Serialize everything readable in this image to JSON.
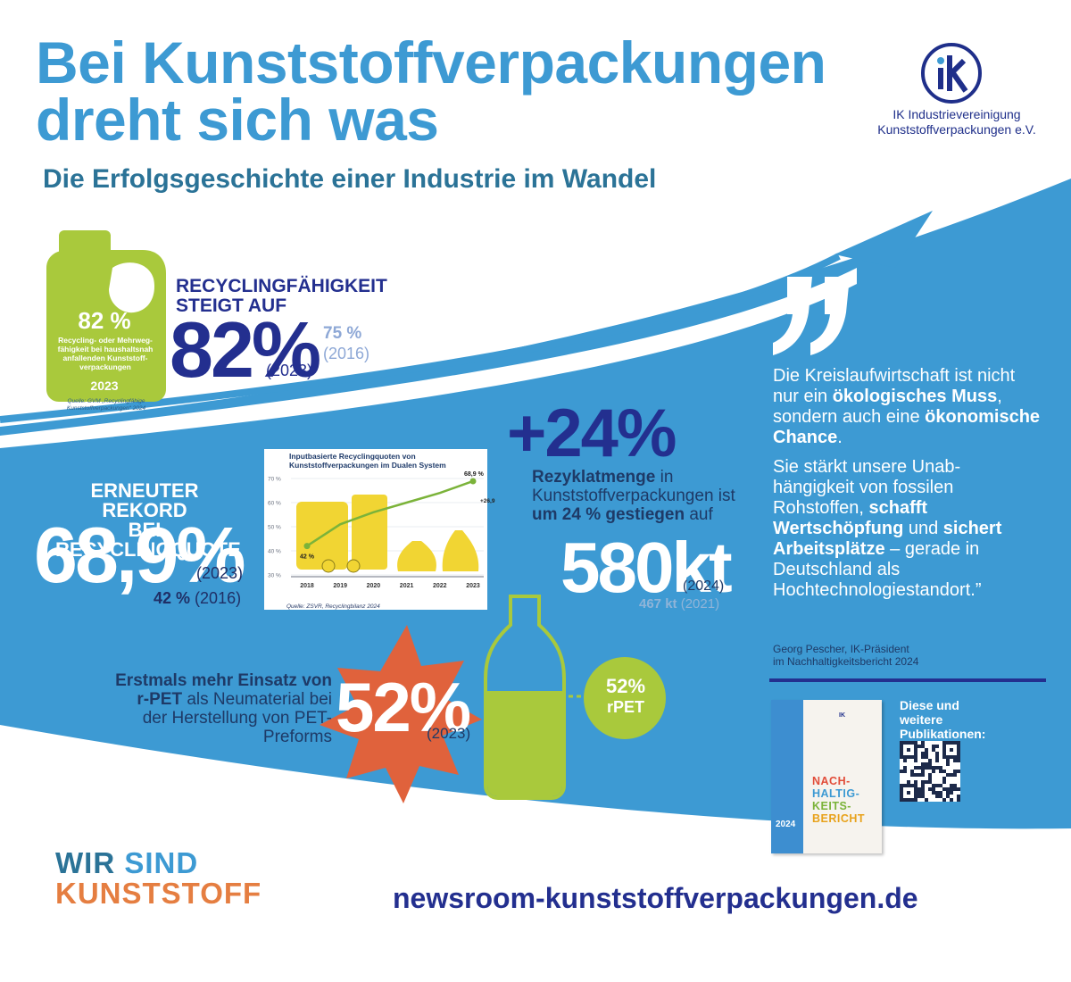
{
  "header": {
    "title_line1": "Bei Kunststoffverpackungen",
    "title_line2": "dreht sich was",
    "subtitle": "Die Erfolgsgeschichte einer Industrie im Wandel"
  },
  "logo": {
    "mark": "IK",
    "line1": "IK Industrievereinigung",
    "line2": "Kunststoffverpackungen e.V."
  },
  "recyclability": {
    "heading_line1": "RECYCLINGFÄHIGKEIT",
    "heading_line2": "STEIGT AUF",
    "value": "82%",
    "year": "(2023)",
    "previous_value": "75 %",
    "previous_year": "(2016)",
    "canister": {
      "value": "82 %",
      "description": "Recycling- oder Mehrweg-fähigkeit bei haushaltsnah anfallenden Kunststoff-verpackungen",
      "year": "2023",
      "source": "Quelle: GVM „Recyclingfähige Kunststoffverpackungen“ 2024"
    }
  },
  "recycling_rate": {
    "heading_line1": "ERNEUTER REKORD",
    "heading_line2": "BEI RECYCLINGQUOTE",
    "value": "68,9%",
    "year": "(2023)",
    "previous_value": "42 %",
    "previous_year": "(2016)"
  },
  "chart_data": {
    "type": "line",
    "title": "Inputbasierte Recyclingquoten von Kunststoffverpackungen im Dualen System",
    "categories": [
      "2018",
      "2019",
      "2020",
      "2021",
      "2022",
      "2023"
    ],
    "y_tick_labels": [
      "30 %",
      "40 %",
      "50 %",
      "60 %",
      "70 %"
    ],
    "ylim": [
      30,
      70
    ],
    "series": [
      {
        "values": [
          42,
          51,
          56,
          60,
          64,
          68.9
        ]
      }
    ],
    "annotations": {
      "start": "42 %",
      "end": "68,9 %",
      "delta": "+26,9 % P"
    },
    "source": "Quelle: ZSVR, Recyclingbilanz 2024",
    "colors": {
      "line": "#7bb33a",
      "containers": "#f1d533",
      "axis": "#6b7280"
    }
  },
  "recyclate": {
    "change": "+24%",
    "text_bold1": "Rezyklatmenge",
    "text1": " in Kunststoffverpackungen ist ",
    "text_bold2": "um 24 % gestiegen",
    "text2": " auf",
    "value": "580kt",
    "year": "(2024)",
    "previous_value": "467 kt",
    "previous_year": " (2021)"
  },
  "quote": {
    "p1_a": "Die Kreislaufwirtschaft ist nicht nur ein ",
    "p1_b": "ökologisches Muss",
    "p1_c": ", sondern auch eine ",
    "p1_d": "ökonomische Chance",
    "p1_e": ".",
    "p2_a": "Sie stärkt unsere Unab-hängigkeit von fossilen Rohstoffen, ",
    "p2_b": "schafft Wertschöpfung",
    "p2_c": " und ",
    "p2_d": "sichert Arbeitsplätze",
    "p2_e": " – gerade in Deutschland als Hochtechnologiestandort.”",
    "author_line1": "Georg Pescher, IK-Präsident",
    "author_line2": "im Nachhaltigkeitsbericht 2024"
  },
  "rpet": {
    "text_bold": "Erstmals mehr Einsatz von r-PET",
    "text_rest": " als Neumaterial bei der Herstellung von PET-Preforms",
    "value": "52%",
    "year": "(2023)",
    "circle_value": "52%",
    "circle_label": "rPET"
  },
  "publication": {
    "label_line1": "Diese und",
    "label_line2": "weitere",
    "label_line3": "Publikationen:",
    "report_title": [
      "NACH-",
      "HALTIG-",
      "KEITS-",
      "BERICHT"
    ],
    "report_year": "2024"
  },
  "footer": {
    "slogan_word1": "WIR",
    "slogan_word2": "SIND",
    "slogan_word3": "KUNSTSTOFF",
    "url": "newsroom-kunststoffverpackungen.de"
  },
  "colors": {
    "brand_blue": "#3d9ad3",
    "dark_blue": "#232f8f",
    "green": "#a9c93c",
    "orange": "#e0623c",
    "yellow": "#f1d533"
  }
}
